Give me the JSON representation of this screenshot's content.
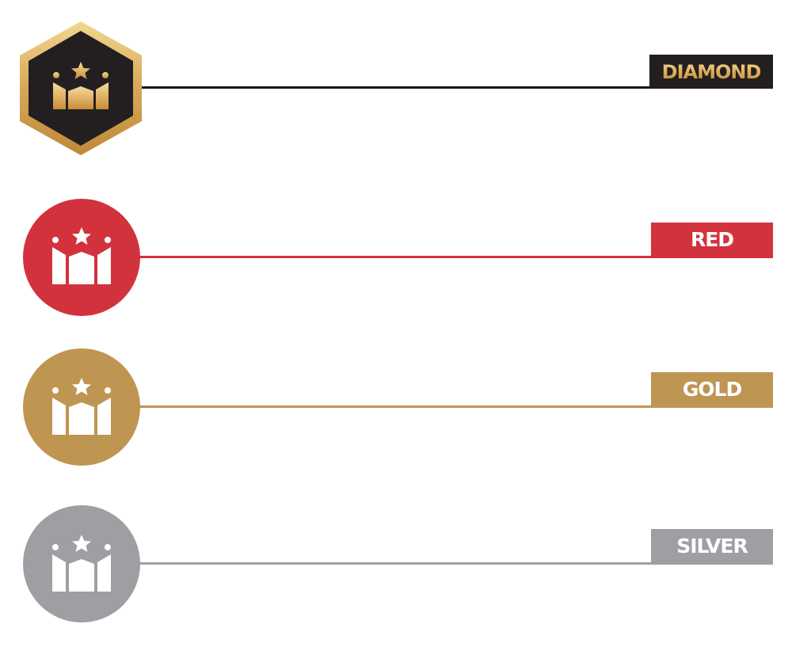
{
  "tiers": [
    {
      "id": "diamond",
      "label": "DIAMOND",
      "color": "#231f20",
      "accent": "#d9a652",
      "badge_shape": "hexagon",
      "icon": "crown-icon"
    },
    {
      "id": "red",
      "label": "RED",
      "color": "#d2323c",
      "badge_shape": "circle",
      "icon": "crown-icon"
    },
    {
      "id": "gold",
      "label": "GOLD",
      "color": "#bf9552",
      "badge_shape": "circle",
      "icon": "crown-icon"
    },
    {
      "id": "silver",
      "label": "SILVER",
      "color": "#9d9fa2",
      "badge_shape": "circle",
      "icon": "crown-icon"
    }
  ]
}
